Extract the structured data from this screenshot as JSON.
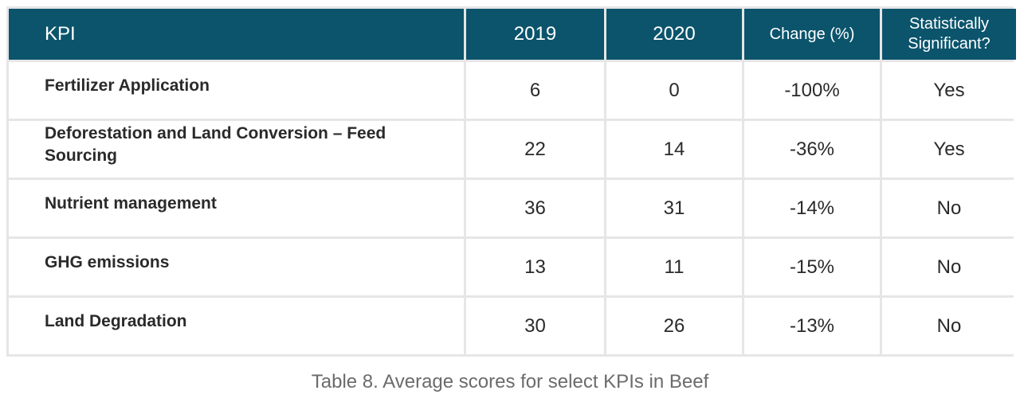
{
  "table": {
    "headers": {
      "kpi": "KPI",
      "y2019": "2019",
      "y2020": "2020",
      "change": "Change (%)",
      "significant_line1": "Statistically",
      "significant_line2": "Significant?"
    },
    "rows": [
      {
        "kpi": "Fertilizer Application",
        "v2019": "6",
        "v2020": "0",
        "change": "-100%",
        "significant": "Yes"
      },
      {
        "kpi": "Deforestation and Land Conversion – Feed Sourcing",
        "v2019": "22",
        "v2020": "14",
        "change": "-36%",
        "significant": "Yes"
      },
      {
        "kpi": "Nutrient management",
        "v2019": "36",
        "v2020": "31",
        "change": "-14%",
        "significant": "No"
      },
      {
        "kpi": "GHG emissions",
        "v2019": "13",
        "v2020": "11",
        "change": "-15%",
        "significant": "No"
      },
      {
        "kpi": "Land Degradation",
        "v2019": "30",
        "v2020": "26",
        "change": "-13%",
        "significant": "No"
      }
    ]
  },
  "caption": "Table 8. Average scores for select KPIs in Beef",
  "colors": {
    "header_bg": "#0b546c",
    "header_text": "#ffffff",
    "grid": "#e6e6e6",
    "caption_text": "#6b6b6b"
  }
}
